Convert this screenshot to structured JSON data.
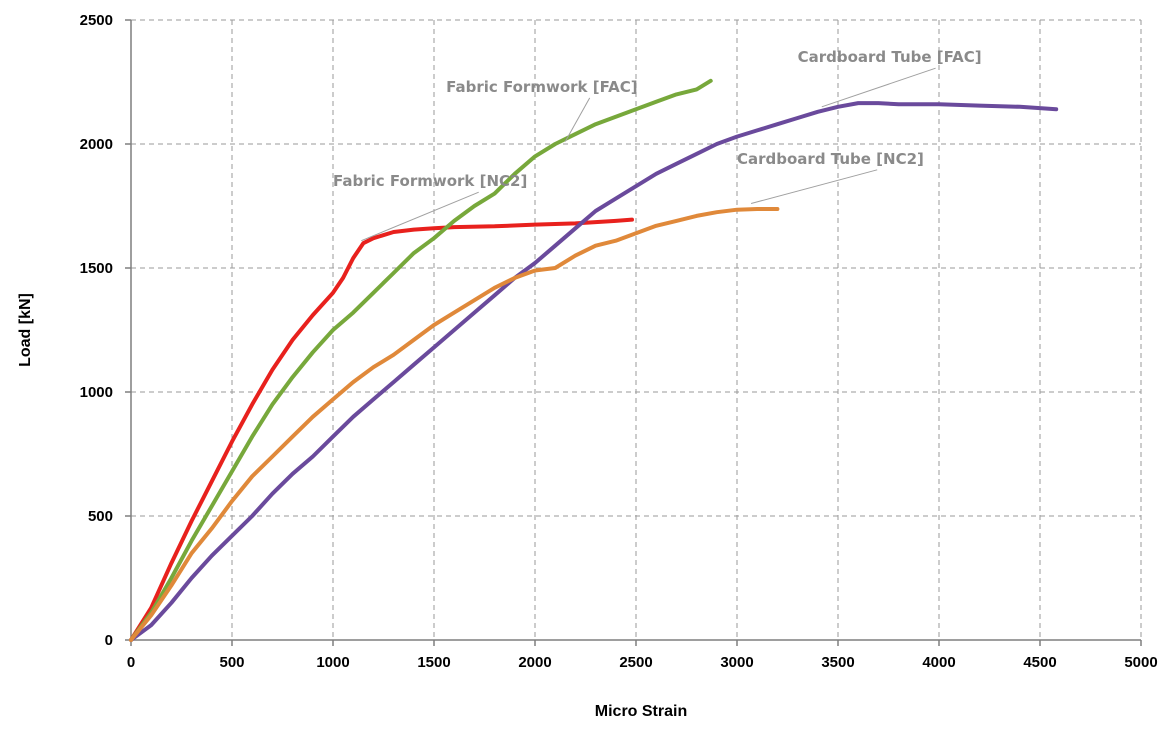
{
  "chart_data": {
    "type": "line",
    "xlabel": "Micro Strain",
    "ylabel": "Load [kN]",
    "xlim": [
      0,
      5000
    ],
    "ylim": [
      0,
      2500
    ],
    "x_ticks": [
      0,
      500,
      1000,
      1500,
      2000,
      2500,
      3000,
      3500,
      4000,
      4500,
      5000
    ],
    "y_ticks": [
      0,
      500,
      1000,
      1500,
      2000,
      2500
    ],
    "grid": true,
    "series": [
      {
        "name": "Fabric Formwork [NC2]",
        "color": "#e8211d",
        "points": [
          [
            0,
            0
          ],
          [
            100,
            130
          ],
          [
            200,
            310
          ],
          [
            300,
            480
          ],
          [
            400,
            640
          ],
          [
            500,
            800
          ],
          [
            600,
            950
          ],
          [
            700,
            1090
          ],
          [
            800,
            1210
          ],
          [
            900,
            1310
          ],
          [
            1000,
            1400
          ],
          [
            1050,
            1460
          ],
          [
            1100,
            1540
          ],
          [
            1150,
            1600
          ],
          [
            1200,
            1620
          ],
          [
            1300,
            1645
          ],
          [
            1400,
            1655
          ],
          [
            1500,
            1660
          ],
          [
            1600,
            1665
          ],
          [
            1800,
            1668
          ],
          [
            2000,
            1675
          ],
          [
            2200,
            1680
          ],
          [
            2400,
            1690
          ],
          [
            2480,
            1695
          ]
        ]
      },
      {
        "name": "Fabric Formwork [FAC]",
        "color": "#77a83b",
        "points": [
          [
            0,
            0
          ],
          [
            100,
            110
          ],
          [
            200,
            250
          ],
          [
            300,
            400
          ],
          [
            400,
            540
          ],
          [
            500,
            680
          ],
          [
            600,
            820
          ],
          [
            700,
            950
          ],
          [
            800,
            1060
          ],
          [
            900,
            1160
          ],
          [
            1000,
            1250
          ],
          [
            1100,
            1320
          ],
          [
            1200,
            1400
          ],
          [
            1300,
            1480
          ],
          [
            1400,
            1560
          ],
          [
            1500,
            1620
          ],
          [
            1600,
            1690
          ],
          [
            1700,
            1750
          ],
          [
            1800,
            1800
          ],
          [
            1900,
            1880
          ],
          [
            2000,
            1950
          ],
          [
            2100,
            2000
          ],
          [
            2200,
            2040
          ],
          [
            2300,
            2080
          ],
          [
            2400,
            2110
          ],
          [
            2500,
            2140
          ],
          [
            2600,
            2170
          ],
          [
            2700,
            2200
          ],
          [
            2800,
            2220
          ],
          [
            2870,
            2255
          ]
        ]
      },
      {
        "name": "Cardboard Tube [FAC]",
        "color": "#6a4a9c",
        "points": [
          [
            0,
            0
          ],
          [
            100,
            60
          ],
          [
            200,
            150
          ],
          [
            300,
            250
          ],
          [
            400,
            340
          ],
          [
            500,
            420
          ],
          [
            600,
            500
          ],
          [
            700,
            590
          ],
          [
            800,
            670
          ],
          [
            900,
            740
          ],
          [
            1000,
            820
          ],
          [
            1100,
            900
          ],
          [
            1200,
            970
          ],
          [
            1300,
            1040
          ],
          [
            1400,
            1110
          ],
          [
            1500,
            1180
          ],
          [
            1600,
            1250
          ],
          [
            1700,
            1320
          ],
          [
            1800,
            1390
          ],
          [
            1900,
            1460
          ],
          [
            2000,
            1520
          ],
          [
            2100,
            1590
          ],
          [
            2200,
            1660
          ],
          [
            2300,
            1730
          ],
          [
            2400,
            1780
          ],
          [
            2500,
            1830
          ],
          [
            2600,
            1880
          ],
          [
            2700,
            1920
          ],
          [
            2800,
            1960
          ],
          [
            2900,
            2000
          ],
          [
            3000,
            2030
          ],
          [
            3100,
            2055
          ],
          [
            3200,
            2080
          ],
          [
            3300,
            2105
          ],
          [
            3400,
            2130
          ],
          [
            3500,
            2150
          ],
          [
            3600,
            2165
          ],
          [
            3700,
            2165
          ],
          [
            3800,
            2160
          ],
          [
            3900,
            2160
          ],
          [
            4000,
            2160
          ],
          [
            4200,
            2155
          ],
          [
            4400,
            2150
          ],
          [
            4580,
            2140
          ]
        ]
      },
      {
        "name": "Cardboard Tube [NC2]",
        "color": "#e0893a",
        "points": [
          [
            0,
            0
          ],
          [
            100,
            100
          ],
          [
            200,
            220
          ],
          [
            300,
            350
          ],
          [
            400,
            450
          ],
          [
            500,
            560
          ],
          [
            600,
            660
          ],
          [
            700,
            740
          ],
          [
            800,
            820
          ],
          [
            900,
            900
          ],
          [
            1000,
            970
          ],
          [
            1100,
            1040
          ],
          [
            1200,
            1100
          ],
          [
            1300,
            1150
          ],
          [
            1400,
            1210
          ],
          [
            1500,
            1270
          ],
          [
            1600,
            1320
          ],
          [
            1700,
            1370
          ],
          [
            1800,
            1420
          ],
          [
            1900,
            1460
          ],
          [
            2000,
            1490
          ],
          [
            2100,
            1500
          ],
          [
            2200,
            1550
          ],
          [
            2300,
            1590
          ],
          [
            2400,
            1610
          ],
          [
            2500,
            1640
          ],
          [
            2600,
            1670
          ],
          [
            2700,
            1690
          ],
          [
            2800,
            1710
          ],
          [
            2900,
            1725
          ],
          [
            3000,
            1735
          ],
          [
            3100,
            1738
          ],
          [
            3200,
            1738
          ]
        ]
      }
    ],
    "annotations": [
      {
        "text": "Fabric Formwork [NC2]",
        "x": 1000,
        "y": 1830,
        "target": [
          1140,
          1610
        ]
      },
      {
        "text": "Fabric Formwork [FAC]",
        "x": 1560,
        "y": 2210,
        "target": [
          2150,
          2010
        ]
      },
      {
        "text": "Cardboard Tube [FAC]",
        "x": 3300,
        "y": 2330,
        "target": [
          3420,
          2150
        ]
      },
      {
        "text": "Cardboard Tube [NC2]",
        "x": 3000,
        "y": 1920,
        "target": [
          3070,
          1760
        ]
      }
    ]
  }
}
